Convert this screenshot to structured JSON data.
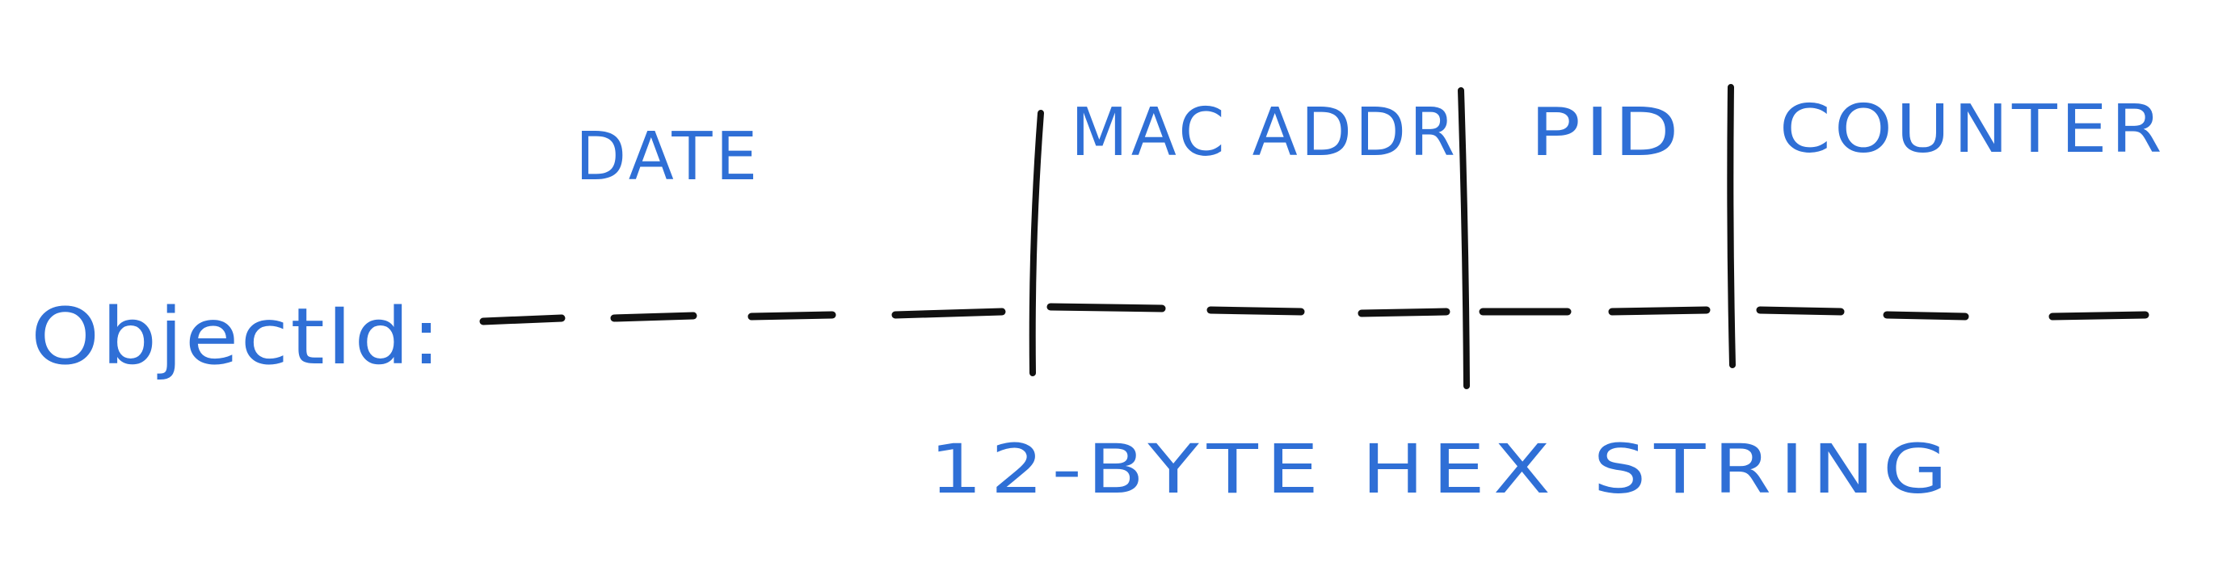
{
  "labels": {
    "object_id": "ObjectId:",
    "segments": [
      "DATE",
      "MAC ADDR",
      "PID",
      "COUNTER"
    ],
    "caption": "12-BYTE HEX STRING"
  },
  "colors": {
    "label": "#2f6fd6",
    "line": "#111111"
  }
}
